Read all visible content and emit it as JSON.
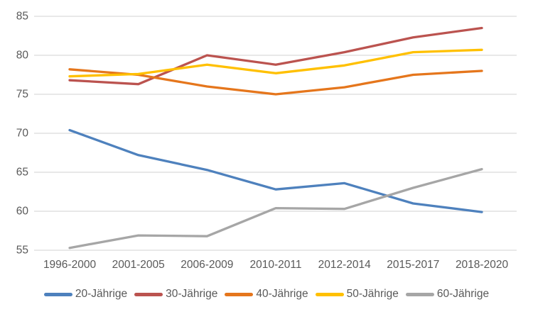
{
  "chart_data": {
    "type": "line",
    "categories": [
      "1996-2000",
      "2001-2005",
      "2006-2009",
      "2010-2011",
      "2012-2014",
      "2015-2017",
      "2018-2020"
    ],
    "series": [
      {
        "name": "20-Jährige",
        "color": "#4E81BD",
        "values": [
          70.4,
          67.2,
          65.3,
          62.8,
          63.6,
          61.0,
          59.9
        ]
      },
      {
        "name": "30-Jährige",
        "color": "#BB534F",
        "values": [
          76.8,
          76.3,
          80.0,
          78.8,
          80.4,
          82.3,
          83.5
        ]
      },
      {
        "name": "40-Jährige",
        "color": "#E5761C",
        "values": [
          78.2,
          77.5,
          76.0,
          75.0,
          75.9,
          77.5,
          78.0
        ]
      },
      {
        "name": "50-Jährige",
        "color": "#FFC000",
        "values": [
          77.3,
          77.6,
          78.8,
          77.7,
          78.7,
          80.4,
          80.7
        ]
      },
      {
        "name": "60-Jährige",
        "color": "#A6A6A6",
        "values": [
          55.3,
          56.9,
          56.8,
          60.4,
          60.3,
          63.0,
          65.4
        ]
      }
    ],
    "y_axis": {
      "min": 55,
      "max": 85,
      "step": 5,
      "tick_labels": [
        "55",
        "60",
        "65",
        "70",
        "75",
        "80",
        "85"
      ]
    },
    "grid": true,
    "legend_position": "bottom",
    "styles": {
      "gridline_color": "#D9D9D9",
      "axis_text_color": "#595959",
      "line_width": 3.3
    }
  }
}
